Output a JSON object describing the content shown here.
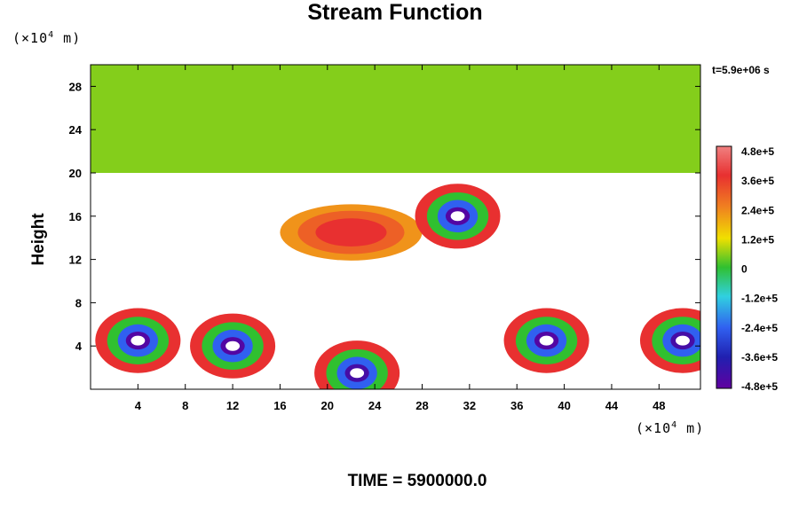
{
  "title": "Stream Function",
  "ylabel": "Height",
  "unit_base": "(×10",
  "unit_exp": "4",
  "unit_tail": " m)",
  "timestamp": "t=5.9e+06 s",
  "footer": "TIME = 5900000.0",
  "chart_data": {
    "type": "heatmap",
    "title": "Stream Function",
    "ylabel": "Height",
    "xunit": "(×10^4 m)",
    "yunit": "(×10^4 m)",
    "x_ticks": [
      "4",
      "8",
      "12",
      "16",
      "20",
      "24",
      "28",
      "32",
      "36",
      "40",
      "44",
      "48"
    ],
    "y_ticks": [
      "4",
      "8",
      "12",
      "16",
      "20",
      "24",
      "28"
    ],
    "xlim": [
      0,
      51.5
    ],
    "ylim": [
      0,
      30
    ],
    "colorbar": {
      "labels": [
        "4.8e+5",
        "3.6e+5",
        "2.4e+5",
        "1.2e+5",
        "0",
        "-1.2e+5",
        "-2.4e+5",
        "-3.6e+5",
        "-4.8e+5"
      ],
      "range": [
        -480000,
        480000
      ],
      "out_of_range_color": "#ffffff"
    },
    "features": [
      {
        "kind": "band",
        "name": "upper layer",
        "y_range": [
          20,
          30
        ],
        "level": 0.11
      },
      {
        "kind": "high",
        "x": 22,
        "y": 14.5,
        "level": 0.75
      },
      {
        "kind": "low",
        "x": 31,
        "y": 16,
        "level": -0.95
      },
      {
        "kind": "low",
        "x": 4,
        "y": 4.5,
        "level": -0.95
      },
      {
        "kind": "low",
        "x": 12,
        "y": 4,
        "level": -0.95
      },
      {
        "kind": "low",
        "x": 22.5,
        "y": 1.5,
        "level": -0.9
      },
      {
        "kind": "low",
        "x": 38.5,
        "y": 4.5,
        "level": -0.95
      },
      {
        "kind": "low",
        "x": 50,
        "y": 4.5,
        "level": -0.9
      }
    ]
  }
}
